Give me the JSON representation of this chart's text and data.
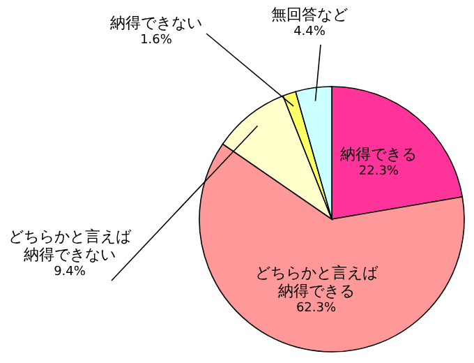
{
  "chart_data": {
    "type": "pie",
    "categories": [
      "納得できる",
      "どちらかと言えば納得できる",
      "どちらかと言えば納得できない",
      "納得できない",
      "無回答など"
    ],
    "values": [
      22.3,
      62.3,
      9.4,
      1.6,
      4.4
    ],
    "colors": [
      "#ff3399",
      "#ff9999",
      "#ffffcc",
      "#ffff66",
      "#ccffff"
    ],
    "value_labels": [
      "22.3%",
      "62.3%",
      "9.4%",
      "1.6%",
      "4.4%"
    ]
  }
}
